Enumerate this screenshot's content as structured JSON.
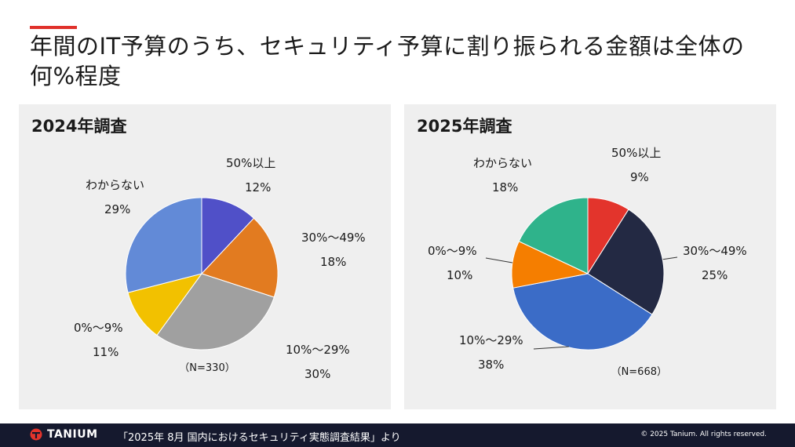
{
  "slide": {
    "title": "年間のIT予算のうち、セキュリティ予算に割り振られる金額は全体の何%程度"
  },
  "footer": {
    "brand": "TANIUM",
    "source": "「2025年 8月 国内におけるセキュリティ実態調査結果」より",
    "copyright": "© 2025 Tanium. All rights reserved."
  },
  "chart_data": [
    {
      "type": "pie",
      "title": "2024年調査",
      "note": "（N=330）",
      "unit": "%",
      "slices": [
        {
          "label": "50%以上",
          "value": 12,
          "display": "12%",
          "color": "#5050c8"
        },
        {
          "label": "30%～49%",
          "value": 18,
          "display": "18%",
          "color": "#e27b20"
        },
        {
          "label": "10%～29%",
          "value": 30,
          "display": "30%",
          "color": "#a0a0a0"
        },
        {
          "label": "0%～9%",
          "value": 11,
          "display": "11%",
          "color": "#f2c100"
        },
        {
          "label": "わからない",
          "value": 29,
          "display": "29%",
          "color": "#628ad7"
        }
      ]
    },
    {
      "type": "pie",
      "title": "2025年調査",
      "note": "（N=668）",
      "unit": "%",
      "slices": [
        {
          "label": "50%以上",
          "value": 9,
          "display": "9%",
          "color": "#e3342c"
        },
        {
          "label": "30%～49%",
          "value": 25,
          "display": "25%",
          "color": "#232943"
        },
        {
          "label": "10%～29%",
          "value": 38,
          "display": "38%",
          "color": "#3b6cc7"
        },
        {
          "label": "0%～9%",
          "value": 10,
          "display": "10%",
          "color": "#f57e00"
        },
        {
          "label": "わからない",
          "value": 18,
          "display": "18%",
          "color": "#2fb38b"
        }
      ]
    }
  ]
}
